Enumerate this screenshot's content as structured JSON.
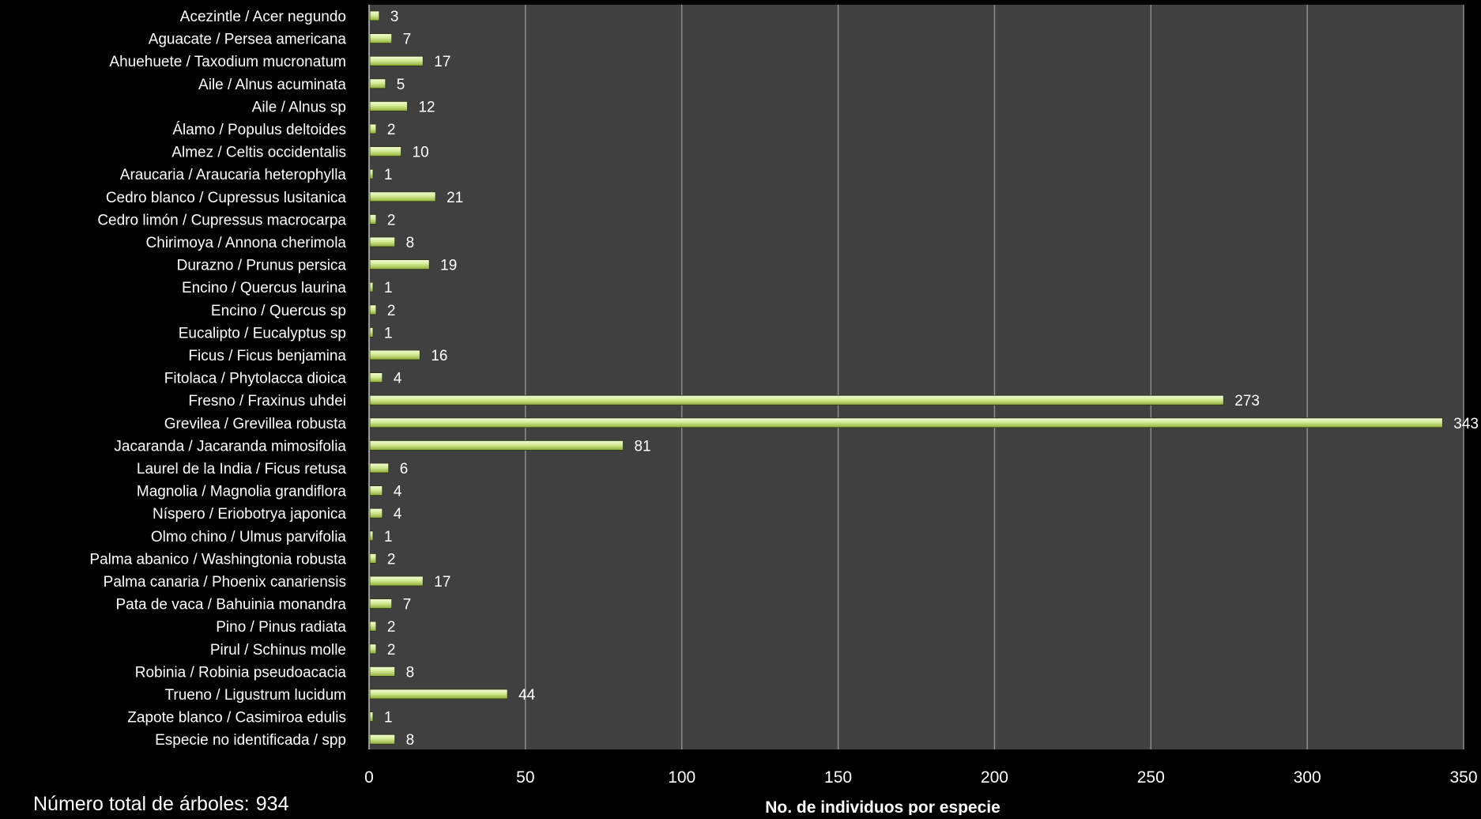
{
  "chart_data": {
    "type": "bar",
    "orientation": "horizontal",
    "categories": [
      "Acezintle / Acer negundo",
      "Aguacate / Persea americana",
      "Ahuehuete / Taxodium mucronatum",
      "Aile / Alnus acuminata",
      "Aile / Alnus sp",
      "Álamo / Populus deltoides",
      "Almez / Celtis occidentalis",
      "Araucaria / Araucaria heterophylla",
      "Cedro blanco / Cupressus lusitanica",
      "Cedro limón / Cupressus macrocarpa",
      "Chirimoya / Annona cherimola",
      "Durazno / Prunus persica",
      "Encino / Quercus laurina",
      "Encino / Quercus sp",
      "Eucalipto / Eucalyptus sp",
      "Ficus / Ficus benjamina",
      "Fitolaca / Phytolacca dioica",
      "Fresno / Fraxinus uhdei",
      "Grevilea / Grevillea robusta",
      "Jacaranda / Jacaranda mimosifolia",
      "Laurel de la India / Ficus retusa",
      "Magnolia / Magnolia grandiflora",
      "Níspero / Eriobotrya japonica",
      "Olmo chino / Ulmus parvifolia",
      "Palma abanico / Washingtonia robusta",
      "Palma canaria / Phoenix canariensis",
      "Pata de vaca / Bahuinia monandra",
      "Pino / Pinus radiata",
      "Pirul / Schinus molle",
      "Robinia / Robinia pseudoacacia",
      "Trueno / Ligustrum lucidum",
      "Zapote blanco / Casimiroa edulis",
      "Especie no identificada / spp"
    ],
    "values": [
      3,
      7,
      17,
      5,
      12,
      2,
      10,
      1,
      21,
      2,
      8,
      19,
      1,
      2,
      1,
      16,
      4,
      273,
      343,
      81,
      6,
      4,
      4,
      1,
      2,
      17,
      7,
      2,
      2,
      8,
      44,
      1,
      8
    ],
    "xlabel": "No. de individuos por especie",
    "ylabel": "",
    "xlim": [
      0,
      350
    ],
    "xticks": [
      0,
      50,
      100,
      150,
      200,
      250,
      300,
      350
    ],
    "grid": true,
    "legend": "none",
    "colors": {
      "page_background": "#000000",
      "plot_background": "#404040",
      "gridline": "#8c8c8c",
      "bar_fill": "#c6e080",
      "bar_highlight": "#f4fbdc",
      "bar_stroke": "#2e3a10",
      "text": "#ffffff"
    }
  },
  "summary": {
    "total_label": "Número total de árboles:",
    "total_value": "934"
  }
}
